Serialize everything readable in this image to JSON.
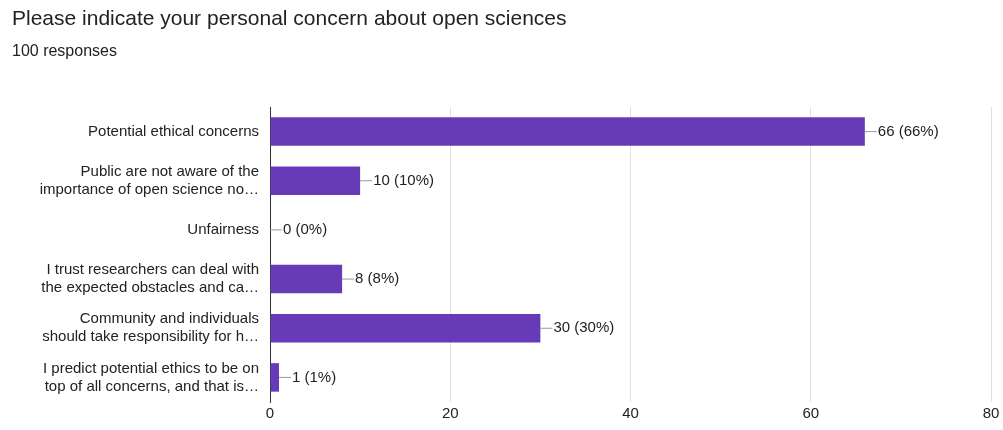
{
  "chart_data": {
    "type": "bar",
    "orientation": "horizontal",
    "title": "Please indicate your personal concern about open sciences",
    "subtitle": "100 responses",
    "categories": [
      "Potential ethical concerns",
      "Public are not aware of the\nimportance of open science no…",
      "Unfairness",
      "I trust researchers can deal with\nthe expected obstacles and ca…",
      "Community and individuals\nshould take responsibility for h…",
      "I predict potential ethics to be on\ntop of all concerns, and that is…"
    ],
    "values": [
      66,
      10,
      0,
      8,
      30,
      1
    ],
    "value_labels": [
      "66 (66%)",
      "10 (10%)",
      "0 (0%)",
      "8 (8%)",
      "30 (30%)",
      "1 (1%)"
    ],
    "color": "#673ab7",
    "xlim": [
      0,
      80
    ],
    "xticks": [
      0,
      20,
      40,
      60,
      80
    ],
    "grid": "x",
    "legend": false
  }
}
